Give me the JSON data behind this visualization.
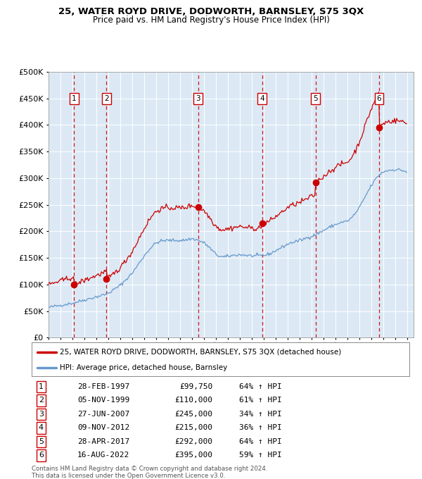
{
  "title": "25, WATER ROYD DRIVE, DODWORTH, BARNSLEY, S75 3QX",
  "subtitle": "Price paid vs. HM Land Registry's House Price Index (HPI)",
  "plot_bg_color": "#dce9f5",
  "ylim": [
    0,
    500000
  ],
  "yticks": [
    0,
    50000,
    100000,
    150000,
    200000,
    250000,
    300000,
    350000,
    400000,
    450000,
    500000
  ],
  "xlim_start": 1995.0,
  "xlim_end": 2025.5,
  "sale_dates": [
    1997.12,
    1999.84,
    2007.49,
    2012.86,
    2017.32,
    2022.62
  ],
  "sale_prices": [
    99750,
    110000,
    245000,
    215000,
    292000,
    395000
  ],
  "sale_labels": [
    "1",
    "2",
    "3",
    "4",
    "5",
    "6"
  ],
  "sale_info": [
    {
      "num": "1",
      "date": "28-FEB-1997",
      "price": "£99,750",
      "pct": "64% ↑ HPI"
    },
    {
      "num": "2",
      "date": "05-NOV-1999",
      "price": "£110,000",
      "pct": "61% ↑ HPI"
    },
    {
      "num": "3",
      "date": "27-JUN-2007",
      "price": "£245,000",
      "pct": "34% ↑ HPI"
    },
    {
      "num": "4",
      "date": "09-NOV-2012",
      "price": "£215,000",
      "pct": "36% ↑ HPI"
    },
    {
      "num": "5",
      "date": "28-APR-2017",
      "price": "£292,000",
      "pct": "64% ↑ HPI"
    },
    {
      "num": "6",
      "date": "16-AUG-2022",
      "price": "£395,000",
      "pct": "59% ↑ HPI"
    }
  ],
  "property_line_color": "#cc0000",
  "hpi_line_color": "#6699cc",
  "sale_marker_color": "#cc0000",
  "vline_color": "#cc0000",
  "grid_color": "#ffffff",
  "legend_label_property": "25, WATER ROYD DRIVE, DODWORTH, BARNSLEY, S75 3QX (detached house)",
  "legend_label_hpi": "HPI: Average price, detached house, Barnsley",
  "footer_text": "Contains HM Land Registry data © Crown copyright and database right 2024.\nThis data is licensed under the Open Government Licence v3.0."
}
